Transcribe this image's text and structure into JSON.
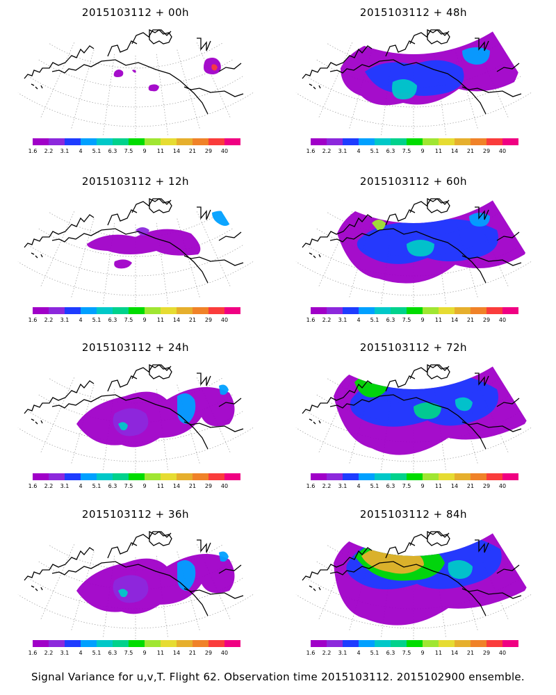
{
  "panels": [
    {
      "title": "2015103112 + 00h",
      "level": 0
    },
    {
      "title": "2015103112 + 48h",
      "level": 3
    },
    {
      "title": "2015103112 + 12h",
      "level": 1
    },
    {
      "title": "2015103112 + 60h",
      "level": 4
    },
    {
      "title": "2015103112 + 24h",
      "level": 2
    },
    {
      "title": "2015103112 + 72h",
      "level": 5
    },
    {
      "title": "2015103112 + 36h",
      "level": 2
    },
    {
      "title": "2015103112 + 84h",
      "level": 6
    }
  ],
  "colorbar": {
    "labels": [
      "1.6",
      "2.2",
      "3.1",
      "4",
      "5.1",
      "6.3",
      "7.5",
      "9",
      "11",
      "14",
      "21",
      "29",
      "40"
    ],
    "colors": [
      "#a000c8",
      "#8c28dc",
      "#1e3cff",
      "#00a0ff",
      "#00c8c8",
      "#00d28c",
      "#00dc00",
      "#a0e632",
      "#e6dc32",
      "#e6af2d",
      "#f08228",
      "#fa3c3c",
      "#f00082"
    ]
  },
  "footer": "Signal Variance for u,v,T. Flight 62. Observation time 2015103112. 2015102900 ensemble."
}
